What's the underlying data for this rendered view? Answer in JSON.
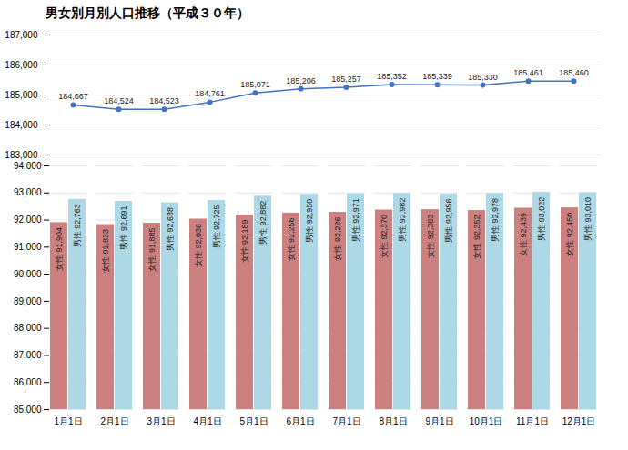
{
  "chart_data": [
    {
      "type": "line",
      "title": "男女別月別人口推移（平成３０年）",
      "categories": [
        "1月1日",
        "2月1日",
        "3月1日",
        "4月1日",
        "5月1日",
        "6月1日",
        "7月1日",
        "8月1日",
        "9月1日",
        "10月1日",
        "11月1日",
        "12月1日"
      ],
      "values": [
        184667,
        184524,
        184523,
        184761,
        185071,
        185206,
        185257,
        185352,
        185339,
        185330,
        185461,
        185460
      ],
      "value_labels": [
        "184,667",
        "184,524",
        "184,523",
        "184,761",
        "185,071",
        "185,206",
        "185,257",
        "185,352",
        "185,339",
        "185,330",
        "185,461",
        "185,460"
      ],
      "color": "#4472c4",
      "marker": "circle",
      "ylim": [
        183000,
        187000
      ],
      "yticks": [
        {
          "value": 183000,
          "label": "183,000"
        },
        {
          "value": 184000,
          "label": "184,000"
        },
        {
          "value": 185000,
          "label": "185,000"
        },
        {
          "value": 186000,
          "label": "186,000"
        },
        {
          "value": 187000,
          "label": "187,000"
        }
      ],
      "grid": true,
      "data_labels": true,
      "tick_labels": "y"
    },
    {
      "type": "bar",
      "categories": [
        "1月1日",
        "2月1日",
        "3月1日",
        "4月1日",
        "5月1日",
        "6月1日",
        "7月1日",
        "8月1日",
        "9月1日",
        "10月1日",
        "11月1日",
        "12月1日"
      ],
      "series": [
        {
          "name": "女性",
          "color": "#cd8080",
          "values": [
            91904,
            91833,
            91885,
            92036,
            92189,
            92256,
            92286,
            92370,
            92383,
            92352,
            92439,
            92450
          ],
          "value_labels": [
            "91,904",
            "91,833",
            "91,885",
            "92,036",
            "92,189",
            "92,256",
            "92,286",
            "92,370",
            "92,383",
            "92,352",
            "92,439",
            "92,450"
          ]
        },
        {
          "name": "男性",
          "color": "#add8e6",
          "values": [
            92763,
            92691,
            92638,
            92725,
            92882,
            92950,
            92971,
            92982,
            92956,
            92978,
            93022,
            93010
          ],
          "value_labels": [
            "92,763",
            "92,691",
            "92,638",
            "92,725",
            "92,882",
            "92,950",
            "92,971",
            "92,982",
            "92,956",
            "92,978",
            "93,022",
            "93,010"
          ]
        }
      ],
      "ylim": [
        85000,
        94000
      ],
      "yticks": [
        {
          "value": 85000,
          "label": "85,000"
        },
        {
          "value": 86000,
          "label": "86,000"
        },
        {
          "value": 87000,
          "label": "87,000"
        },
        {
          "value": 88000,
          "label": "88,000"
        },
        {
          "value": 89000,
          "label": "89,000"
        },
        {
          "value": 90000,
          "label": "90,000"
        },
        {
          "value": 91000,
          "label": "91,000"
        },
        {
          "value": 92000,
          "label": "92,000"
        },
        {
          "value": 93000,
          "label": "93,000"
        },
        {
          "value": 94000,
          "label": "94,000"
        }
      ],
      "grid": true,
      "data_labels": true
    }
  ]
}
